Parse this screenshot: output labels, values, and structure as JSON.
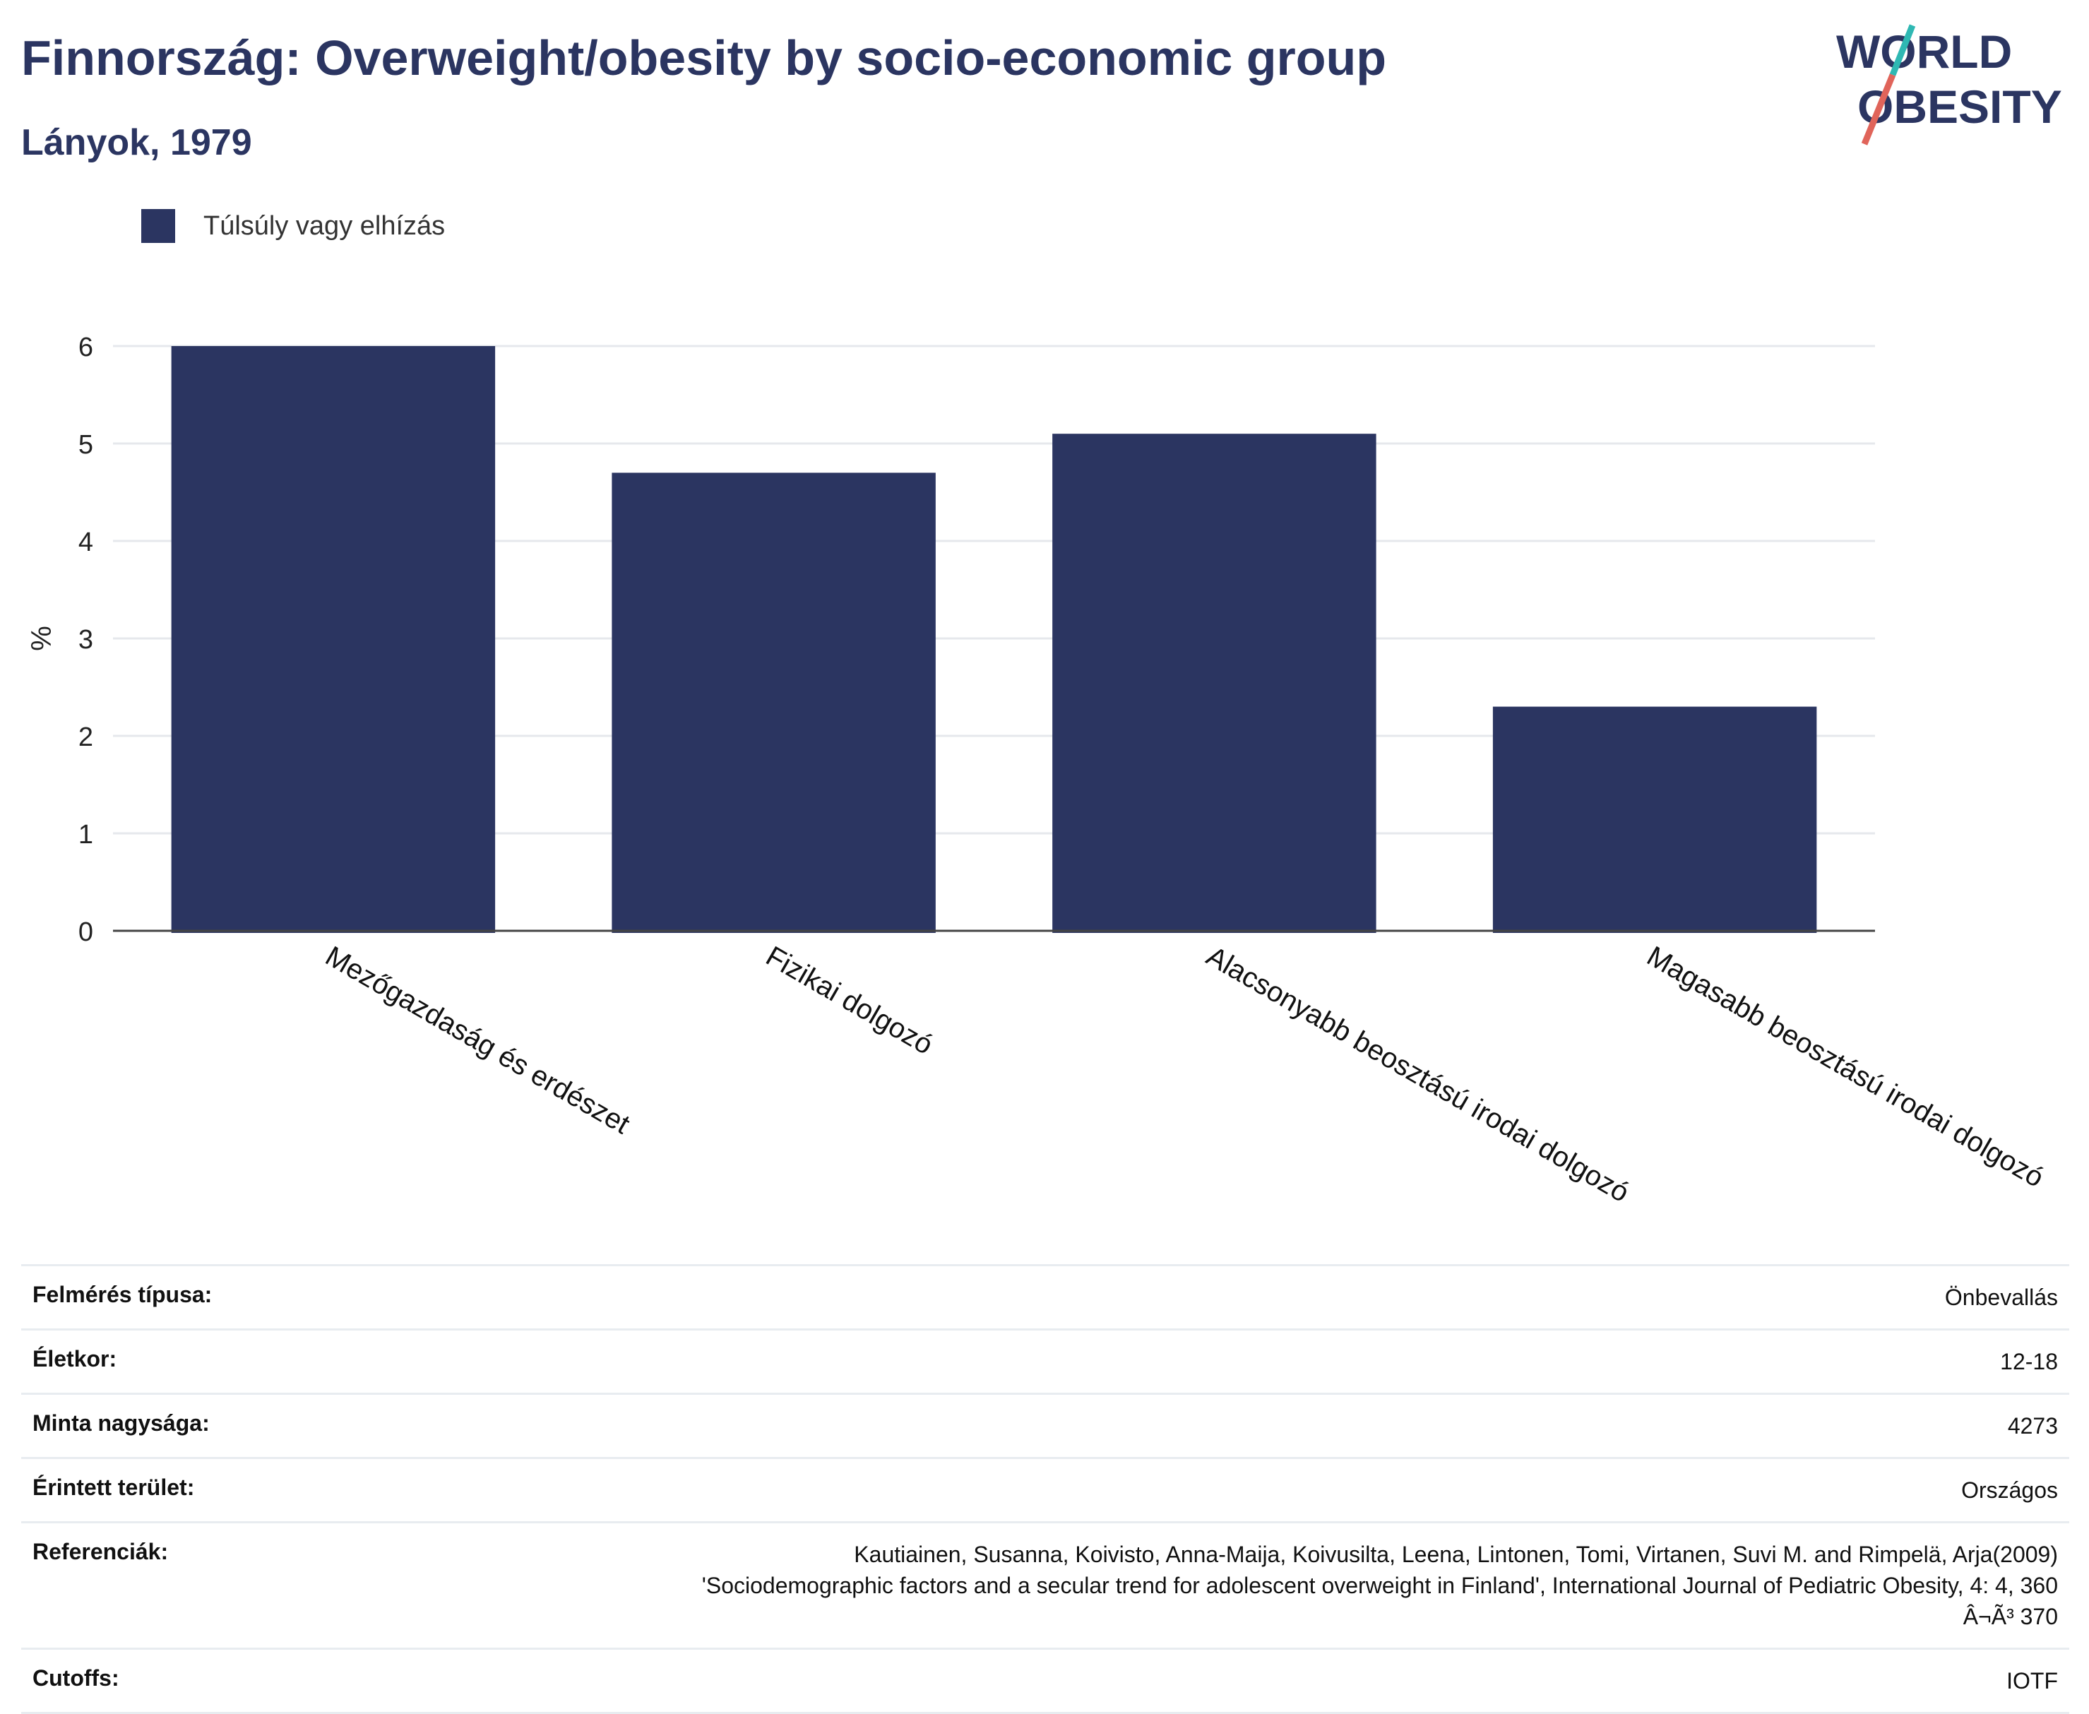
{
  "title": "Finnország: Overweight/obesity by socio-economic group",
  "subtitle": "Lányok, 1979",
  "logo": {
    "line1": "WORLD",
    "line2": "OBESITY"
  },
  "colors": {
    "bar": "#2b3561",
    "title": "#2b3561",
    "logo_teal": "#2fb8b3",
    "logo_red": "#e0645a"
  },
  "chart_data": {
    "type": "bar",
    "categories": [
      "Mezőgazdaság és erdészet",
      "Fizikai dolgozó",
      "Alacsonyabb beosztású irodai dolgozó",
      "Magasabb beosztású irodai dolgozó"
    ],
    "series": [
      {
        "name": "Túlsúly vagy elhízás",
        "values": [
          6.0,
          4.7,
          5.1,
          2.3
        ]
      }
    ],
    "ylabel": "%",
    "ylim": [
      0,
      6
    ],
    "yticks": [
      0,
      1,
      2,
      3,
      4,
      5,
      6
    ],
    "grid": true,
    "legend": "top-left"
  },
  "meta": [
    {
      "key": "Felmérés típusa:",
      "value": "Önbevallás"
    },
    {
      "key": "Életkor:",
      "value": "12-18"
    },
    {
      "key": "Minta nagysága:",
      "value": "4273"
    },
    {
      "key": "Érintett terület:",
      "value": "Országos"
    },
    {
      "key": "Referenciák:",
      "value": "Kautiainen, Susanna, Koivisto, Anna-Maija, Koivusilta, Leena, Lintonen, Tomi, Virtanen, Suvi M. and Rimpelä, Arja(2009)",
      "value2": "'Sociodemographic factors and a secular trend for adolescent overweight in Finland', International Journal of Pediatric Obesity, 4: 4, 360",
      "value3": "Â¬Ã³ 370"
    },
    {
      "key": "Cutoffs:",
      "value": "IOTF"
    }
  ]
}
